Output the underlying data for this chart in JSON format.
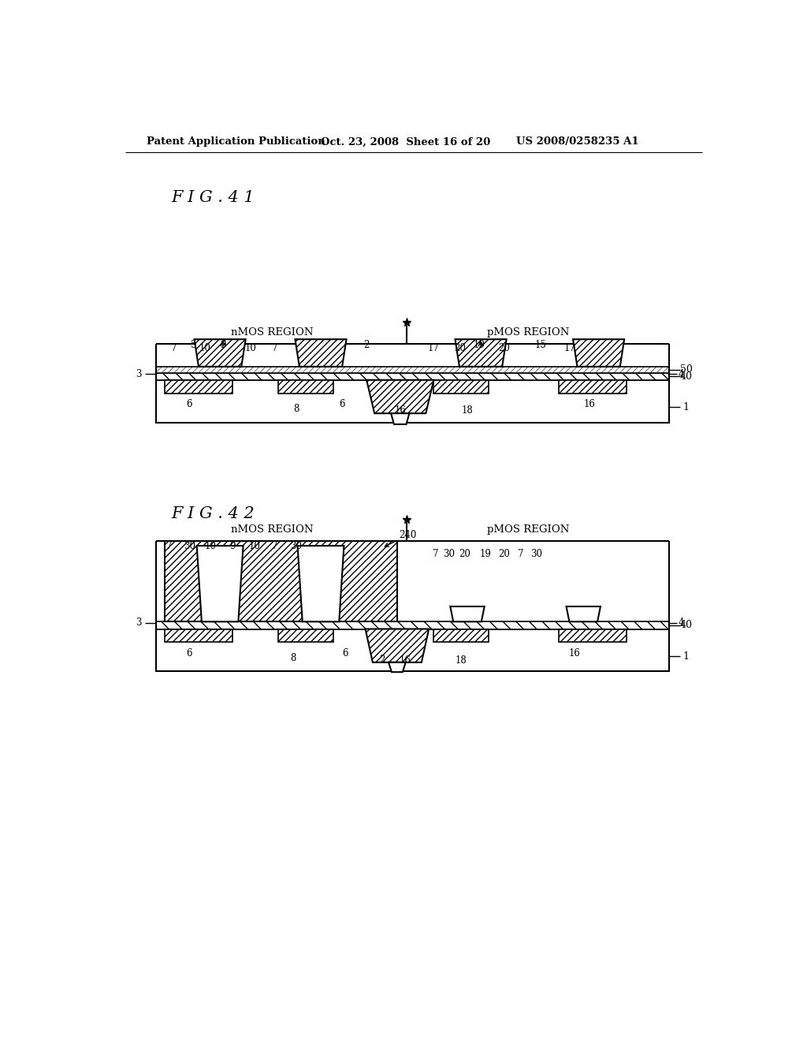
{
  "background_color": "#ffffff",
  "header_left": "Patent Application Publication",
  "header_center": "Oct. 23, 2008  Sheet 16 of 20",
  "header_right": "US 2008/0258235 A1",
  "fig41_title": "F I G . 4 1",
  "fig42_title": "F I G . 4 2"
}
